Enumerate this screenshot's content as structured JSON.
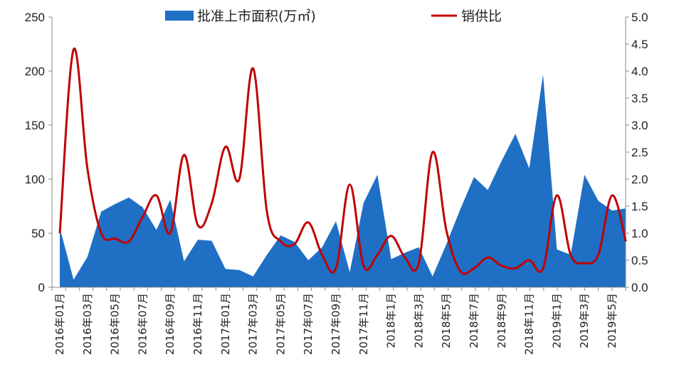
{
  "chart_data": {
    "type": "area+line",
    "title": "",
    "series": [
      {
        "name": "批准上市面积(万㎡)",
        "kind": "area",
        "axis": "left",
        "color": "#1F6FC5",
        "values": [
          55,
          7,
          28,
          70,
          77,
          83,
          74,
          53,
          81,
          24,
          44,
          43,
          17,
          16,
          10,
          30,
          48,
          42,
          25,
          37,
          61,
          14,
          78,
          104,
          26,
          32,
          37,
          10,
          40,
          72,
          102,
          90,
          117,
          142,
          110,
          197,
          35,
          30,
          104,
          80,
          71,
          73
        ]
      },
      {
        "name": "销供比",
        "kind": "line",
        "axis": "right",
        "color": "#C00000",
        "values": [
          1.0,
          4.4,
          2.2,
          1.0,
          0.9,
          0.85,
          1.3,
          1.7,
          1.0,
          2.45,
          1.15,
          1.55,
          2.6,
          2.0,
          4.05,
          1.4,
          0.85,
          0.8,
          1.2,
          0.6,
          0.35,
          1.9,
          0.4,
          0.6,
          0.95,
          0.55,
          0.45,
          2.5,
          1.05,
          0.3,
          0.35,
          0.55,
          0.4,
          0.35,
          0.5,
          0.35,
          1.7,
          0.6,
          0.45,
          0.6,
          1.7,
          0.85
        ]
      }
    ],
    "x_tick_labels": [
      "2016年01月",
      "2016年03月",
      "2016年05月",
      "2016年07月",
      "2016年09月",
      "2016年11月",
      "2017年01月",
      "2017年03月",
      "2017年05月",
      "2017年07月",
      "2017年09月",
      "2017年11月",
      "2018年1月",
      "2018年3月",
      "2018年5月",
      "2018年7月",
      "2018年9月",
      "2018年11月",
      "2019年1月",
      "2019年3月",
      "2019年5月"
    ],
    "y_left": {
      "min": 0,
      "max": 250,
      "ticks": [
        "0",
        "50",
        "100",
        "150",
        "200",
        "250"
      ]
    },
    "y_right": {
      "min": 0,
      "max": 5,
      "ticks": [
        "0.0",
        "0.5",
        "1.0",
        "1.5",
        "2.0",
        "2.5",
        "3.0",
        "3.5",
        "4.0",
        "4.5",
        "5.0"
      ]
    },
    "legend": {
      "position": "top-center",
      "area_label": "批准上市面积(万㎡)",
      "line_label": "销供比"
    },
    "grid": false
  }
}
